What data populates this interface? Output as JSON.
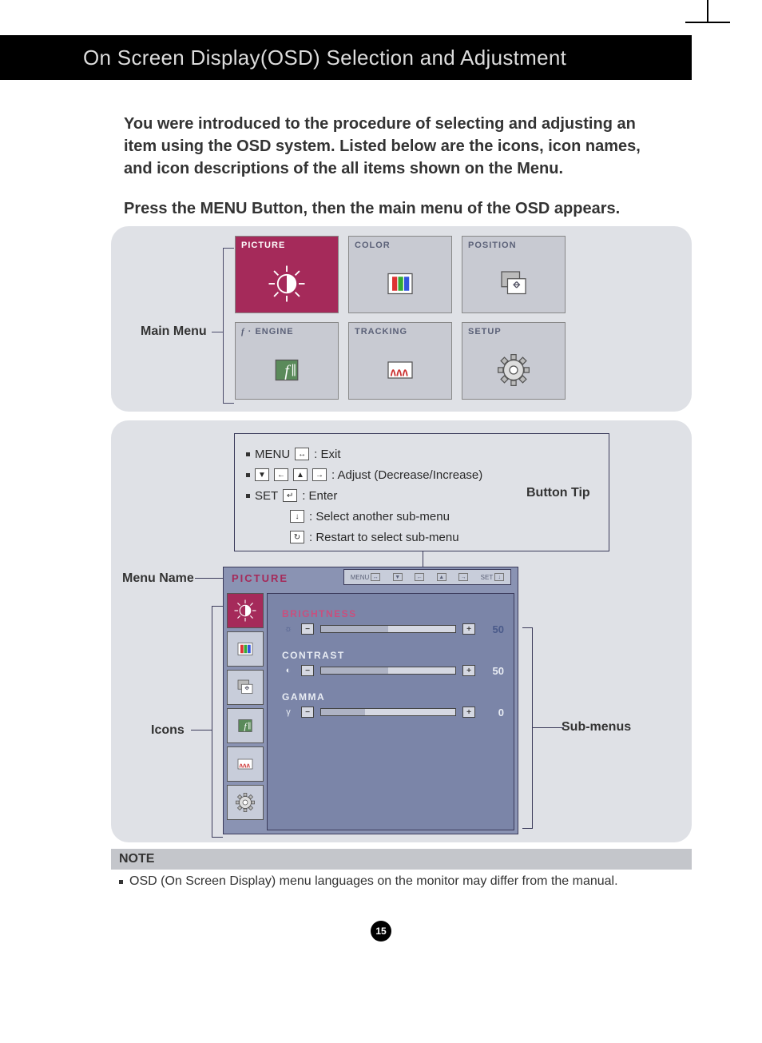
{
  "colors": {
    "header_bg": "#000000",
    "header_text": "#dcdcdc",
    "panel_bg": "#dfe1e6",
    "cell_bg": "#c8cad2",
    "cell_active_bg": "#a52a5a",
    "cell_text": "#5b6178",
    "osd_bg": "#8a93b3",
    "osd_main_bg": "#7b85a8",
    "osd_title_color": "#a52a5a",
    "brightness_label_color": "#c94f7e",
    "label_text": "#333333",
    "track_bg": "#d5d8e2",
    "note_title_bg": "#c4c6cb"
  },
  "header": {
    "title": "On Screen Display(OSD) Selection and Adjustment"
  },
  "intro": {
    "p1": "You were introduced to the procedure of selecting and adjusting an item using the OSD system.  Listed below are the icons, icon names, and icon descriptions of the all items shown on the Menu.",
    "p2": "Press the MENU Button, then the main menu of the OSD appears."
  },
  "panel1": {
    "label": "Main Menu",
    "cells": [
      {
        "title": "PICTURE",
        "active": true,
        "icon": "brightness"
      },
      {
        "title": "COLOR",
        "active": false,
        "icon": "rgb"
      },
      {
        "title": "POSITION",
        "active": false,
        "icon": "position"
      },
      {
        "title": "f · ENGINE",
        "active": false,
        "icon": "f"
      },
      {
        "title": "TRACKING",
        "active": false,
        "icon": "tracking"
      },
      {
        "title": "SETUP",
        "active": false,
        "icon": "gear"
      }
    ]
  },
  "button_tip": {
    "label": "Button Tip",
    "rows": [
      {
        "prefix": "MENU",
        "icons": [
          "↔"
        ],
        "desc": ": Exit"
      },
      {
        "prefix": "",
        "icons": [
          "▼",
          "←",
          "▲",
          "→"
        ],
        "desc": ": Adjust (Decrease/Increase)"
      },
      {
        "prefix": "SET",
        "icons": [
          "↵"
        ],
        "desc": ": Enter"
      },
      {
        "prefix": "",
        "icons": [
          "↓"
        ],
        "desc": ": Select another sub-menu"
      },
      {
        "prefix": "",
        "icons": [
          "↻"
        ],
        "desc": ": Restart to select sub-menu"
      }
    ]
  },
  "labels": {
    "menu_name": "Menu Name",
    "icons": "Icons",
    "sub_menus": "Sub-menus"
  },
  "osd": {
    "title": "PICTURE",
    "hint": [
      {
        "t": "MENU",
        "i": "↔"
      },
      {
        "t": "",
        "i": "▼"
      },
      {
        "t": "",
        "i": "←"
      },
      {
        "t": "",
        "i": "▲"
      },
      {
        "t": "",
        "i": "→"
      },
      {
        "t": "SET",
        "i": "↓"
      }
    ],
    "side_icons": [
      "brightness",
      "rgb",
      "position",
      "f",
      "tracking",
      "gear"
    ],
    "side_active_index": 0,
    "sliders": [
      {
        "name": "BRIGHTNESS",
        "icon": "☼",
        "value": 50,
        "max": 100,
        "fill_pct": 50,
        "name_color": "#c94f7e",
        "value_color": "#4a5a8a"
      },
      {
        "name": "CONTRAST",
        "icon": "◐",
        "value": 50,
        "max": 100,
        "fill_pct": 50,
        "name_color": "#e8ecf3",
        "value_color": "#e8ecf3"
      },
      {
        "name": "GAMMA",
        "icon": "γ",
        "value": 0,
        "max": 100,
        "fill_pct": 33,
        "name_color": "#e8ecf3",
        "value_color": "#e8ecf3"
      }
    ]
  },
  "note": {
    "title": "NOTE",
    "body": "OSD (On Screen Display) menu languages on the monitor may differ from the manual."
  },
  "page_number": "15"
}
